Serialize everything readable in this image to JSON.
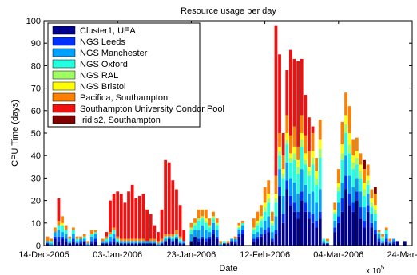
{
  "chart_data": {
    "type": "bar",
    "stacked": true,
    "title": "Resource usage per day",
    "xlabel": "Date",
    "ylabel": "CPU Time (days)",
    "x_multiplier_label": "x 10",
    "x_multiplier_exponent": "5",
    "ylim": [
      0,
      100
    ],
    "yticks": [
      0,
      10,
      20,
      30,
      40,
      50,
      60,
      70,
      80,
      90,
      100
    ],
    "xlim": [
      "2005-12-14",
      "2006-03-24"
    ],
    "xticks": [
      {
        "date": "2005-12-14",
        "label": "14-Dec-2005"
      },
      {
        "date": "2006-01-03",
        "label": "03-Jan-2006"
      },
      {
        "date": "2006-01-23",
        "label": "23-Jan-2006"
      },
      {
        "date": "2006-02-12",
        "label": "12-Feb-2006"
      },
      {
        "date": "2006-03-04",
        "label": "04-Mar-2006"
      },
      {
        "date": "2006-03-24",
        "label": "24-Mar-2006"
      }
    ],
    "legend_position": "top-left",
    "grid": false,
    "series": [
      {
        "name": "Cluster1, UEA",
        "color": "#00008f"
      },
      {
        "name": "NGS Leeds",
        "color": "#0030ff"
      },
      {
        "name": "NGS Manchester",
        "color": "#00a0ff"
      },
      {
        "name": "NGS Oxford",
        "color": "#20ffdf"
      },
      {
        "name": "NGS RAL",
        "color": "#9fff60"
      },
      {
        "name": "NGS Bristol",
        "color": "#ffff00"
      },
      {
        "name": "Pacifica, Southampton",
        "color": "#ff8000"
      },
      {
        "name": "Southampton University Condor Pool",
        "color": "#ef1010"
      },
      {
        "name": "Iridis2, Southampton",
        "color": "#800000"
      }
    ],
    "days": [
      {
        "date": "2005-12-15",
        "values": [
          1,
          0,
          1,
          0,
          0,
          0,
          2,
          0,
          0
        ]
      },
      {
        "date": "2005-12-16",
        "values": [
          0,
          0,
          1,
          1,
          0,
          0,
          1,
          0,
          0
        ]
      },
      {
        "date": "2005-12-17",
        "values": [
          3,
          1,
          2,
          0,
          0,
          0,
          2,
          0,
          0
        ]
      },
      {
        "date": "2005-12-18",
        "values": [
          2,
          2,
          3,
          2,
          0,
          0,
          2,
          10,
          0
        ]
      },
      {
        "date": "2005-12-19",
        "values": [
          3,
          1,
          2,
          3,
          0,
          1,
          3,
          0,
          0
        ]
      },
      {
        "date": "2005-12-20",
        "values": [
          2,
          1,
          2,
          2,
          0,
          0,
          2,
          0,
          0
        ]
      },
      {
        "date": "2005-12-21",
        "values": [
          1,
          0,
          1,
          1,
          0,
          0,
          1,
          0,
          0
        ]
      },
      {
        "date": "2005-12-22",
        "values": [
          2,
          1,
          2,
          2,
          0,
          0,
          1,
          0,
          0
        ]
      },
      {
        "date": "2005-12-23",
        "values": [
          1,
          0,
          1,
          1,
          0,
          0,
          1,
          0,
          0
        ]
      },
      {
        "date": "2005-12-24",
        "values": [
          1,
          1,
          1,
          0,
          0,
          0,
          1,
          0,
          0
        ]
      },
      {
        "date": "2005-12-25",
        "values": [
          2,
          0,
          1,
          1,
          0,
          0,
          1,
          0,
          0
        ]
      },
      {
        "date": "2005-12-26",
        "values": [
          0,
          0,
          1,
          0,
          0,
          0,
          1,
          0,
          0
        ]
      },
      {
        "date": "2005-12-27",
        "values": [
          1,
          1,
          2,
          1,
          0,
          0,
          2,
          0,
          0
        ]
      },
      {
        "date": "2005-12-28",
        "values": [
          2,
          1,
          2,
          1,
          0,
          0,
          1,
          0,
          0
        ]
      },
      {
        "date": "2005-12-30",
        "values": [
          1,
          0,
          1,
          0,
          0,
          0,
          1,
          0,
          0
        ]
      },
      {
        "date": "2005-12-31",
        "values": [
          1,
          0,
          1,
          1,
          0,
          0,
          1,
          2,
          0
        ]
      },
      {
        "date": "2006-01-01",
        "values": [
          1,
          1,
          2,
          1,
          0,
          0,
          1,
          14,
          0
        ]
      },
      {
        "date": "2006-01-02",
        "values": [
          2,
          1,
          2,
          2,
          0,
          0,
          1,
          15,
          0
        ]
      },
      {
        "date": "2006-01-03",
        "values": [
          1,
          0,
          1,
          1,
          0,
          0,
          1,
          20,
          0
        ]
      },
      {
        "date": "2006-01-04",
        "values": [
          1,
          0,
          1,
          0,
          0,
          0,
          1,
          20,
          0
        ]
      },
      {
        "date": "2006-01-05",
        "values": [
          1,
          0,
          1,
          0,
          0,
          0,
          1,
          16,
          0
        ]
      },
      {
        "date": "2006-01-06",
        "values": [
          1,
          0,
          1,
          0,
          0,
          0,
          1,
          21,
          0
        ]
      },
      {
        "date": "2006-01-07",
        "values": [
          1,
          0,
          1,
          0,
          0,
          0,
          1,
          24,
          0
        ]
      },
      {
        "date": "2006-01-08",
        "values": [
          1,
          0,
          1,
          0,
          0,
          0,
          1,
          18,
          0
        ]
      },
      {
        "date": "2006-01-09",
        "values": [
          1,
          0,
          1,
          0,
          0,
          0,
          1,
          19,
          0
        ]
      },
      {
        "date": "2006-01-10",
        "values": [
          1,
          0,
          1,
          0,
          0,
          0,
          1,
          20,
          0
        ]
      },
      {
        "date": "2006-01-11",
        "values": [
          1,
          0,
          1,
          0,
          0,
          0,
          0,
          14,
          0
        ]
      },
      {
        "date": "2006-01-12",
        "values": [
          1,
          0,
          1,
          0,
          0,
          0,
          1,
          11,
          0
        ]
      },
      {
        "date": "2006-01-13",
        "values": [
          1,
          0,
          1,
          0,
          0,
          0,
          1,
          6,
          0
        ]
      },
      {
        "date": "2006-01-14",
        "values": [
          0,
          0,
          1,
          0,
          0,
          0,
          1,
          4,
          0
        ]
      },
      {
        "date": "2006-01-15",
        "values": [
          1,
          0,
          1,
          0,
          0,
          0,
          1,
          13,
          0
        ]
      },
      {
        "date": "2006-01-16",
        "values": [
          2,
          0,
          1,
          1,
          0,
          0,
          1,
          33,
          0
        ]
      },
      {
        "date": "2006-01-17",
        "values": [
          3,
          0,
          1,
          0,
          0,
          0,
          1,
          32,
          0
        ]
      },
      {
        "date": "2006-01-18",
        "values": [
          2,
          0,
          1,
          1,
          0,
          0,
          1,
          24,
          0
        ]
      },
      {
        "date": "2006-01-19",
        "values": [
          3,
          0,
          1,
          1,
          0,
          0,
          2,
          18,
          0
        ]
      },
      {
        "date": "2006-01-20",
        "values": [
          1,
          0,
          1,
          1,
          0,
          0,
          1,
          14,
          0
        ]
      },
      {
        "date": "2006-01-21",
        "values": [
          1,
          0,
          1,
          0,
          0,
          0,
          0,
          5,
          0
        ]
      },
      {
        "date": "2006-01-23",
        "values": [
          2,
          0,
          3,
          2,
          1,
          0,
          2,
          0,
          0
        ]
      },
      {
        "date": "2006-01-24",
        "values": [
          4,
          0,
          3,
          2,
          1,
          0,
          2,
          0,
          0
        ]
      },
      {
        "date": "2006-01-25",
        "values": [
          2,
          1,
          4,
          4,
          1,
          0,
          4,
          0,
          0
        ]
      },
      {
        "date": "2006-01-26",
        "values": [
          3,
          1,
          5,
          3,
          1,
          0,
          3,
          0,
          0
        ]
      },
      {
        "date": "2006-01-27",
        "values": [
          2,
          1,
          4,
          3,
          1,
          1,
          4,
          0,
          0
        ]
      },
      {
        "date": "2006-01-28",
        "values": [
          3,
          1,
          2,
          2,
          1,
          0,
          3,
          0,
          0
        ]
      },
      {
        "date": "2006-01-29",
        "values": [
          5,
          2,
          3,
          2,
          1,
          0,
          2,
          0,
          0
        ]
      },
      {
        "date": "2006-01-30",
        "values": [
          3,
          1,
          3,
          2,
          1,
          0,
          2,
          0,
          0
        ]
      },
      {
        "date": "2006-01-31",
        "values": [
          0,
          0,
          1,
          0,
          0,
          0,
          1,
          0,
          0
        ]
      },
      {
        "date": "2006-02-01",
        "values": [
          1,
          0,
          0,
          1,
          0,
          0,
          0,
          0,
          0
        ]
      },
      {
        "date": "2006-02-02",
        "values": [
          1,
          0,
          0,
          0,
          0,
          0,
          1,
          0,
          0
        ]
      },
      {
        "date": "2006-02-03",
        "values": [
          2,
          0,
          1,
          0,
          0,
          0,
          0,
          0,
          0
        ]
      },
      {
        "date": "2006-02-04",
        "values": [
          1,
          1,
          1,
          0,
          0,
          0,
          1,
          0,
          0
        ]
      },
      {
        "date": "2006-02-05",
        "values": [
          4,
          1,
          2,
          1,
          0,
          1,
          1,
          0,
          0
        ]
      },
      {
        "date": "2006-02-06",
        "values": [
          5,
          2,
          2,
          1,
          0,
          0,
          1,
          0,
          0
        ]
      },
      {
        "date": "2006-02-09",
        "values": [
          2,
          1,
          2,
          2,
          1,
          0,
          4,
          0,
          0
        ]
      },
      {
        "date": "2006-02-10",
        "values": [
          3,
          1,
          2,
          3,
          1,
          1,
          4,
          0,
          0
        ]
      },
      {
        "date": "2006-02-11",
        "values": [
          4,
          1,
          3,
          3,
          1,
          1,
          5,
          0,
          0
        ]
      },
      {
        "date": "2006-02-12",
        "values": [
          5,
          2,
          4,
          4,
          2,
          2,
          7,
          0,
          0
        ]
      },
      {
        "date": "2006-02-13",
        "values": [
          6,
          2,
          5,
          6,
          2,
          2,
          6,
          0,
          0
        ]
      },
      {
        "date": "2006-02-14",
        "values": [
          2,
          1,
          3,
          3,
          1,
          1,
          4,
          0,
          0
        ]
      },
      {
        "date": "2006-02-15",
        "values": [
          5,
          2,
          6,
          6,
          2,
          2,
          8,
          67,
          0
        ]
      },
      {
        "date": "2006-02-16",
        "values": [
          22,
          4,
          8,
          6,
          2,
          2,
          6,
          35,
          0
        ]
      },
      {
        "date": "2006-02-17",
        "values": [
          10,
          4,
          8,
          8,
          2,
          2,
          6,
          10,
          0
        ]
      },
      {
        "date": "2006-02-18",
        "values": [
          25,
          4,
          8,
          8,
          2,
          3,
          8,
          20,
          0
        ]
      },
      {
        "date": "2006-02-19",
        "values": [
          18,
          4,
          8,
          7,
          2,
          2,
          8,
          38,
          0
        ]
      },
      {
        "date": "2006-02-20",
        "values": [
          15,
          4,
          9,
          10,
          3,
          3,
          9,
          30,
          0
        ]
      },
      {
        "date": "2006-02-21",
        "values": [
          12,
          3,
          8,
          9,
          3,
          3,
          6,
          38,
          0
        ]
      },
      {
        "date": "2006-02-22",
        "values": [
          20,
          4,
          10,
          10,
          3,
          3,
          8,
          25,
          0
        ]
      },
      {
        "date": "2006-02-23",
        "values": [
          15,
          4,
          8,
          9,
          2,
          3,
          8,
          18,
          0
        ]
      },
      {
        "date": "2006-02-24",
        "values": [
          12,
          3,
          8,
          8,
          2,
          2,
          7,
          15,
          0
        ]
      },
      {
        "date": "2006-02-25",
        "values": [
          10,
          4,
          10,
          12,
          3,
          3,
          8,
          3,
          0
        ]
      },
      {
        "date": "2006-02-26",
        "values": [
          8,
          3,
          8,
          8,
          3,
          3,
          6,
          0,
          0
        ]
      },
      {
        "date": "2006-02-27",
        "values": [
          12,
          3,
          10,
          14,
          4,
          4,
          9,
          0,
          0
        ]
      },
      {
        "date": "2006-02-28",
        "values": [
          1,
          0,
          1,
          1,
          0,
          0,
          0,
          0,
          0
        ]
      },
      {
        "date": "2006-03-01",
        "values": [
          1,
          0,
          0,
          1,
          0,
          0,
          1,
          0,
          0
        ]
      },
      {
        "date": "2006-03-03",
        "values": [
          6,
          2,
          3,
          3,
          1,
          1,
          3,
          0,
          0
        ]
      },
      {
        "date": "2006-03-04",
        "values": [
          10,
          3,
          6,
          5,
          2,
          2,
          6,
          0,
          0
        ]
      },
      {
        "date": "2006-03-05",
        "values": [
          15,
          6,
          7,
          10,
          3,
          4,
          10,
          0,
          0
        ]
      },
      {
        "date": "2006-03-06",
        "values": [
          25,
          6,
          9,
          10,
          4,
          4,
          10,
          0,
          0
        ]
      },
      {
        "date": "2006-03-07",
        "values": [
          18,
          5,
          8,
          10,
          4,
          5,
          12,
          0,
          0
        ]
      },
      {
        "date": "2006-03-08",
        "values": [
          15,
          4,
          7,
          8,
          3,
          3,
          7,
          0,
          0
        ]
      },
      {
        "date": "2006-03-09",
        "values": [
          20,
          4,
          6,
          6,
          3,
          3,
          6,
          0,
          0
        ]
      },
      {
        "date": "2006-03-10",
        "values": [
          12,
          5,
          7,
          6,
          3,
          3,
          5,
          0,
          0
        ]
      },
      {
        "date": "2006-03-11",
        "values": [
          8,
          3,
          6,
          5,
          3,
          3,
          6,
          0,
          4
        ]
      },
      {
        "date": "2006-03-12",
        "values": [
          15,
          3,
          5,
          4,
          2,
          2,
          5,
          0,
          0
        ]
      },
      {
        "date": "2006-03-13",
        "values": [
          8,
          2,
          4,
          3,
          2,
          2,
          4,
          0,
          0
        ]
      },
      {
        "date": "2006-03-14",
        "values": [
          5,
          2,
          4,
          3,
          2,
          2,
          5,
          0,
          3
        ]
      },
      {
        "date": "2006-03-15",
        "values": [
          2,
          1,
          2,
          1,
          0,
          0,
          1,
          0,
          0
        ]
      },
      {
        "date": "2006-03-16",
        "values": [
          1,
          0,
          1,
          1,
          1,
          0,
          1,
          0,
          0
        ]
      },
      {
        "date": "2006-03-17",
        "values": [
          2,
          1,
          2,
          2,
          0,
          0,
          1,
          0,
          0
        ]
      },
      {
        "date": "2006-03-18",
        "values": [
          1,
          0,
          1,
          0,
          0,
          0,
          1,
          0,
          0
        ]
      },
      {
        "date": "2006-03-19",
        "values": [
          1,
          1,
          1,
          0,
          0,
          0,
          0,
          0,
          0
        ]
      },
      {
        "date": "2006-03-20",
        "values": [
          2,
          0,
          0,
          0,
          0,
          0,
          0,
          0,
          0
        ]
      },
      {
        "date": "2006-03-22",
        "values": [
          2,
          0,
          0,
          0,
          0,
          0,
          0,
          0,
          0
        ]
      }
    ]
  }
}
